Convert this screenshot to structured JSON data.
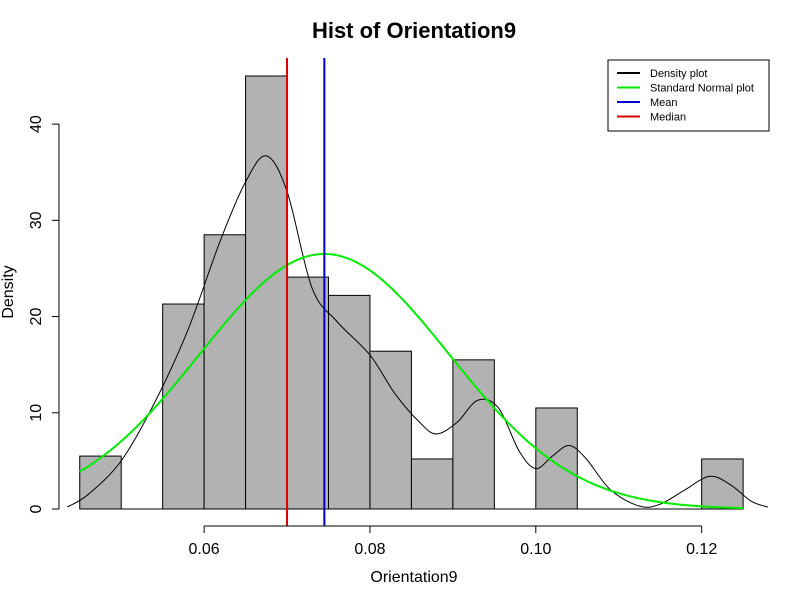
{
  "chart_data": {
    "type": "bar",
    "title": "Hist of Orientation9",
    "xlabel": "Orientation9",
    "ylabel": "Density",
    "xlim": [
      0.0425,
      0.128
    ],
    "ylim": [
      0,
      45
    ],
    "x_ticks": [
      0.06,
      0.08,
      0.1,
      0.12
    ],
    "x_tick_labels": [
      "0.06",
      "0.08",
      "0.10",
      "0.12"
    ],
    "y_ticks": [
      0,
      10,
      20,
      30,
      40
    ],
    "y_tick_labels": [
      "0",
      "10",
      "20",
      "30",
      "40"
    ],
    "bar_color": "#b2b2b2",
    "bins": [
      {
        "x0": 0.045,
        "x1": 0.05,
        "value": 5.5
      },
      {
        "x0": 0.05,
        "x1": 0.055,
        "value": 0
      },
      {
        "x0": 0.055,
        "x1": 0.06,
        "value": 21.3
      },
      {
        "x0": 0.06,
        "x1": 0.065,
        "value": 28.5
      },
      {
        "x0": 0.065,
        "x1": 0.07,
        "value": 45.0
      },
      {
        "x0": 0.07,
        "x1": 0.075,
        "value": 24.1
      },
      {
        "x0": 0.075,
        "x1": 0.08,
        "value": 22.2
      },
      {
        "x0": 0.08,
        "x1": 0.085,
        "value": 16.4
      },
      {
        "x0": 0.085,
        "x1": 0.09,
        "value": 5.2
      },
      {
        "x0": 0.09,
        "x1": 0.095,
        "value": 15.5
      },
      {
        "x0": 0.095,
        "x1": 0.1,
        "value": 0
      },
      {
        "x0": 0.1,
        "x1": 0.105,
        "value": 10.5
      },
      {
        "x0": 0.105,
        "x1": 0.11,
        "value": 0
      },
      {
        "x0": 0.11,
        "x1": 0.115,
        "value": 0
      },
      {
        "x0": 0.115,
        "x1": 0.12,
        "value": 0
      },
      {
        "x0": 0.12,
        "x1": 0.125,
        "value": 5.2
      }
    ],
    "series": [
      {
        "name": "Density plot",
        "color": "#000000",
        "points": [
          [
            0.0435,
            0.2
          ],
          [
            0.046,
            1.5
          ],
          [
            0.05,
            5.0
          ],
          [
            0.054,
            11
          ],
          [
            0.058,
            18.5
          ],
          [
            0.062,
            28
          ],
          [
            0.065,
            34
          ],
          [
            0.0675,
            36.7
          ],
          [
            0.07,
            33
          ],
          [
            0.073,
            23
          ],
          [
            0.076,
            19.5
          ],
          [
            0.08,
            16
          ],
          [
            0.083,
            12
          ],
          [
            0.086,
            9
          ],
          [
            0.088,
            7.8
          ],
          [
            0.0905,
            9
          ],
          [
            0.093,
            11.3
          ],
          [
            0.0955,
            10.5
          ],
          [
            0.098,
            6
          ],
          [
            0.1,
            4.2
          ],
          [
            0.102,
            5.5
          ],
          [
            0.104,
            6.6
          ],
          [
            0.106,
            5.3
          ],
          [
            0.109,
            2.0
          ],
          [
            0.1125,
            0.3
          ],
          [
            0.115,
            0.5
          ],
          [
            0.118,
            2.0
          ],
          [
            0.121,
            3.4
          ],
          [
            0.1235,
            2.5
          ],
          [
            0.126,
            0.8
          ],
          [
            0.128,
            0.2
          ]
        ]
      },
      {
        "name": "Standard Normal plot",
        "color": "#00ee00",
        "mean": 0.0745,
        "sd": 0.01505,
        "x_range": [
          0.045,
          0.125
        ]
      }
    ],
    "vlines": [
      {
        "name": "Mean",
        "x": 0.0745,
        "color": "#0000cc"
      },
      {
        "name": "Median",
        "x": 0.07,
        "color": "#dd0000"
      }
    ],
    "legend": {
      "position": "top-right",
      "items": [
        {
          "label": "Density plot",
          "color": "#000000"
        },
        {
          "label": "Standard Normal plot",
          "color": "#00ee00"
        },
        {
          "label": "Mean",
          "color": "#0000cc"
        },
        {
          "label": "Median",
          "color": "#dd0000"
        }
      ]
    }
  }
}
